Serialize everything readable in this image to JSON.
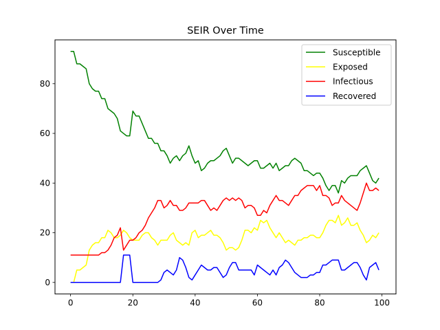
{
  "chart_data": {
    "type": "line",
    "title": "SEIR Over Time",
    "xlabel": "",
    "ylabel": "",
    "xlim": [
      -5,
      104.5
    ],
    "ylim": [
      -4.65,
      97.65
    ],
    "xticks": [
      0,
      20,
      40,
      60,
      80,
      100
    ],
    "yticks": [
      0,
      20,
      40,
      60,
      80
    ],
    "grid": false,
    "legend": {
      "position": "top-right"
    },
    "x": [
      0,
      1,
      2,
      3,
      4,
      5,
      6,
      7,
      8,
      9,
      10,
      11,
      12,
      13,
      14,
      15,
      16,
      17,
      18,
      19,
      20,
      21,
      22,
      23,
      24,
      25,
      26,
      27,
      28,
      29,
      30,
      31,
      32,
      33,
      34,
      35,
      36,
      37,
      38,
      39,
      40,
      41,
      42,
      43,
      44,
      45,
      46,
      47,
      48,
      49,
      50,
      51,
      52,
      53,
      54,
      55,
      56,
      57,
      58,
      59,
      60,
      61,
      62,
      63,
      64,
      65,
      66,
      67,
      68,
      69,
      70,
      71,
      72,
      73,
      74,
      75,
      76,
      77,
      78,
      79,
      80,
      81,
      82,
      83,
      84,
      85,
      86,
      87,
      88,
      89,
      90,
      91,
      92,
      93,
      94,
      95,
      96,
      97,
      98,
      99
    ],
    "series": [
      {
        "name": "Susceptible",
        "color": "#008000",
        "values": [
          93,
          93,
          88,
          88,
          87,
          86,
          80,
          78,
          77,
          77,
          74,
          74,
          70,
          69,
          68,
          66,
          61,
          60,
          59,
          59,
          69,
          67,
          67,
          64,
          61,
          58,
          58,
          56,
          56,
          53,
          53,
          51,
          48,
          50,
          51,
          49,
          51,
          52,
          55,
          51,
          48,
          49,
          45,
          46,
          48,
          49,
          49,
          50,
          51,
          53,
          54,
          51,
          48,
          50,
          50,
          49,
          48,
          47,
          48,
          49,
          49,
          46,
          46,
          47,
          48,
          46,
          48,
          45,
          46,
          47,
          47,
          49,
          50,
          49,
          48,
          45,
          45,
          44,
          43,
          44,
          44,
          42,
          39,
          37,
          39,
          39,
          36,
          41,
          40,
          42,
          43,
          43,
          43,
          45,
          46,
          47,
          44,
          41,
          40,
          42
        ]
      },
      {
        "name": "Exposed",
        "color": "#ffff00",
        "values": [
          0,
          0,
          5,
          5,
          6,
          7,
          13,
          15,
          16,
          16,
          18,
          18,
          21,
          20,
          18,
          18,
          19,
          21,
          20,
          18,
          17,
          17,
          17,
          19,
          20,
          20,
          18,
          17,
          15,
          17,
          17,
          17,
          19,
          20,
          17,
          16,
          15,
          16,
          15,
          20,
          21,
          18,
          19,
          19,
          20,
          21,
          19,
          19,
          18,
          16,
          13,
          14,
          14,
          13,
          14,
          17,
          21,
          21,
          20,
          22,
          21,
          25,
          24,
          25,
          22,
          20,
          18,
          20,
          18,
          16,
          17,
          16,
          15,
          17,
          17,
          18,
          18,
          19,
          19,
          18,
          18,
          20,
          23,
          25,
          25,
          24,
          27,
          23,
          24,
          26,
          23,
          23,
          24,
          21,
          19,
          16,
          17,
          19,
          18,
          20
        ]
      },
      {
        "name": "Infectious",
        "color": "#ff0000",
        "values": [
          11,
          11,
          11,
          11,
          11,
          11,
          11,
          11,
          11,
          11,
          12,
          12,
          13,
          15,
          18,
          19,
          22,
          13,
          15,
          17,
          17,
          18,
          20,
          21,
          23,
          26,
          28,
          30,
          33,
          33,
          30,
          31,
          33,
          31,
          31,
          29,
          29,
          30,
          32,
          32,
          32,
          32,
          33,
          33,
          31,
          29,
          30,
          29,
          31,
          33,
          34,
          33,
          34,
          33,
          34,
          33,
          30,
          31,
          31,
          30,
          27,
          27,
          29,
          28,
          31,
          33,
          35,
          33,
          33,
          32,
          31,
          33,
          35,
          35,
          37,
          38,
          39,
          39,
          39,
          37,
          39,
          35,
          35,
          34,
          31,
          32,
          32,
          35,
          33,
          32,
          31,
          30,
          29,
          32,
          36,
          40,
          37,
          37,
          38,
          37
        ]
      },
      {
        "name": "Recovered",
        "color": "#0000ff",
        "values": [
          0,
          0,
          0,
          0,
          0,
          0,
          0,
          0,
          0,
          0,
          0,
          0,
          0,
          0,
          0,
          0,
          0,
          11,
          11,
          11,
          0,
          0,
          0,
          0,
          0,
          0,
          0,
          0,
          0,
          1,
          4,
          5,
          4,
          3,
          5,
          10,
          9,
          6,
          2,
          1,
          3,
          5,
          7,
          6,
          5,
          5,
          6,
          6,
          4,
          2,
          3,
          6,
          8,
          8,
          5,
          5,
          5,
          5,
          5,
          3,
          7,
          6,
          5,
          4,
          3,
          5,
          3,
          6,
          7,
          9,
          8,
          6,
          4,
          3,
          2,
          2,
          2,
          3,
          3,
          4,
          4,
          7,
          7,
          8,
          9,
          9,
          9,
          5,
          5,
          6,
          7,
          8,
          8,
          6,
          3,
          1,
          6,
          7,
          8,
          5
        ]
      }
    ]
  }
}
